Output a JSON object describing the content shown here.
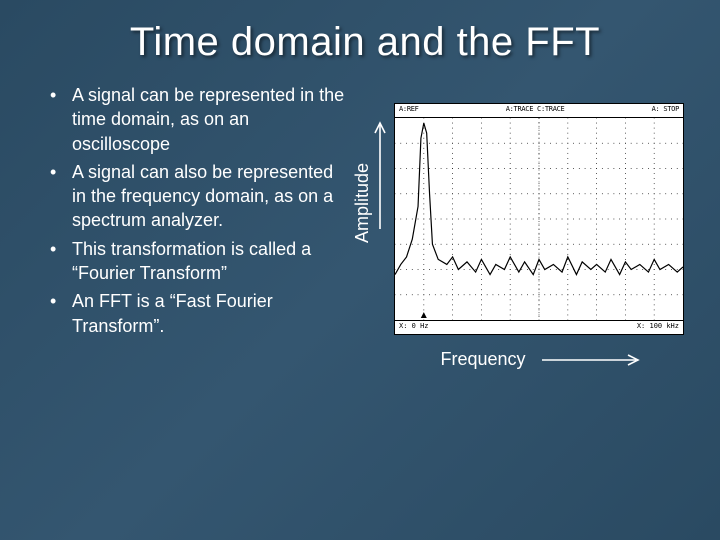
{
  "title": "Time domain and the FFT",
  "bullets": [
    "A signal can be represented in the time domain, as on an oscilloscope",
    "A signal can also be represented in the frequency domain, as on a spectrum analyzer.",
    "This transformation is called a “Fourier Transform”",
    "An FFT is a “Fast Fourier Transform”."
  ],
  "axis_labels": {
    "y": "Amplitude",
    "x": "Frequency"
  },
  "plot": {
    "type": "line",
    "background_color": "#ffffff",
    "trace_color": "#000000",
    "grid_color": "#000000",
    "grid_divisions_x": 10,
    "grid_divisions_y": 8,
    "header_left": "A:REF",
    "header_mid": "A:TRACE  C:TRACE",
    "header_right": "A: STOP",
    "footer_left": "X: 0 Hz",
    "footer_right": "X: 100 kHz",
    "xlim": [
      0,
      100
    ],
    "ylim": [
      -80,
      0
    ],
    "data": [
      {
        "x": 0,
        "y": -62
      },
      {
        "x": 2,
        "y": -58
      },
      {
        "x": 4,
        "y": -55
      },
      {
        "x": 6,
        "y": -48
      },
      {
        "x": 8,
        "y": -35
      },
      {
        "x": 9,
        "y": -8
      },
      {
        "x": 10,
        "y": -2
      },
      {
        "x": 11,
        "y": -6
      },
      {
        "x": 12,
        "y": -30
      },
      {
        "x": 13,
        "y": -50
      },
      {
        "x": 15,
        "y": -56
      },
      {
        "x": 18,
        "y": -58
      },
      {
        "x": 20,
        "y": -55
      },
      {
        "x": 22,
        "y": -60
      },
      {
        "x": 25,
        "y": -57
      },
      {
        "x": 28,
        "y": -61
      },
      {
        "x": 30,
        "y": -56
      },
      {
        "x": 33,
        "y": -62
      },
      {
        "x": 35,
        "y": -58
      },
      {
        "x": 38,
        "y": -60
      },
      {
        "x": 40,
        "y": -55
      },
      {
        "x": 43,
        "y": -61
      },
      {
        "x": 45,
        "y": -57
      },
      {
        "x": 48,
        "y": -62
      },
      {
        "x": 50,
        "y": -56
      },
      {
        "x": 52,
        "y": -60
      },
      {
        "x": 55,
        "y": -58
      },
      {
        "x": 58,
        "y": -61
      },
      {
        "x": 60,
        "y": -55
      },
      {
        "x": 63,
        "y": -62
      },
      {
        "x": 65,
        "y": -57
      },
      {
        "x": 68,
        "y": -60
      },
      {
        "x": 70,
        "y": -58
      },
      {
        "x": 73,
        "y": -61
      },
      {
        "x": 75,
        "y": -56
      },
      {
        "x": 78,
        "y": -62
      },
      {
        "x": 80,
        "y": -57
      },
      {
        "x": 82,
        "y": -60
      },
      {
        "x": 85,
        "y": -58
      },
      {
        "x": 88,
        "y": -61
      },
      {
        "x": 90,
        "y": -56
      },
      {
        "x": 92,
        "y": -60
      },
      {
        "x": 95,
        "y": -58
      },
      {
        "x": 98,
        "y": -61
      },
      {
        "x": 100,
        "y": -59
      }
    ]
  },
  "colors": {
    "slide_bg": "#34536c",
    "text": "#ffffff"
  },
  "fonts": {
    "title_size_pt": 32,
    "body_size_pt": 16,
    "axis_size_pt": 16
  }
}
